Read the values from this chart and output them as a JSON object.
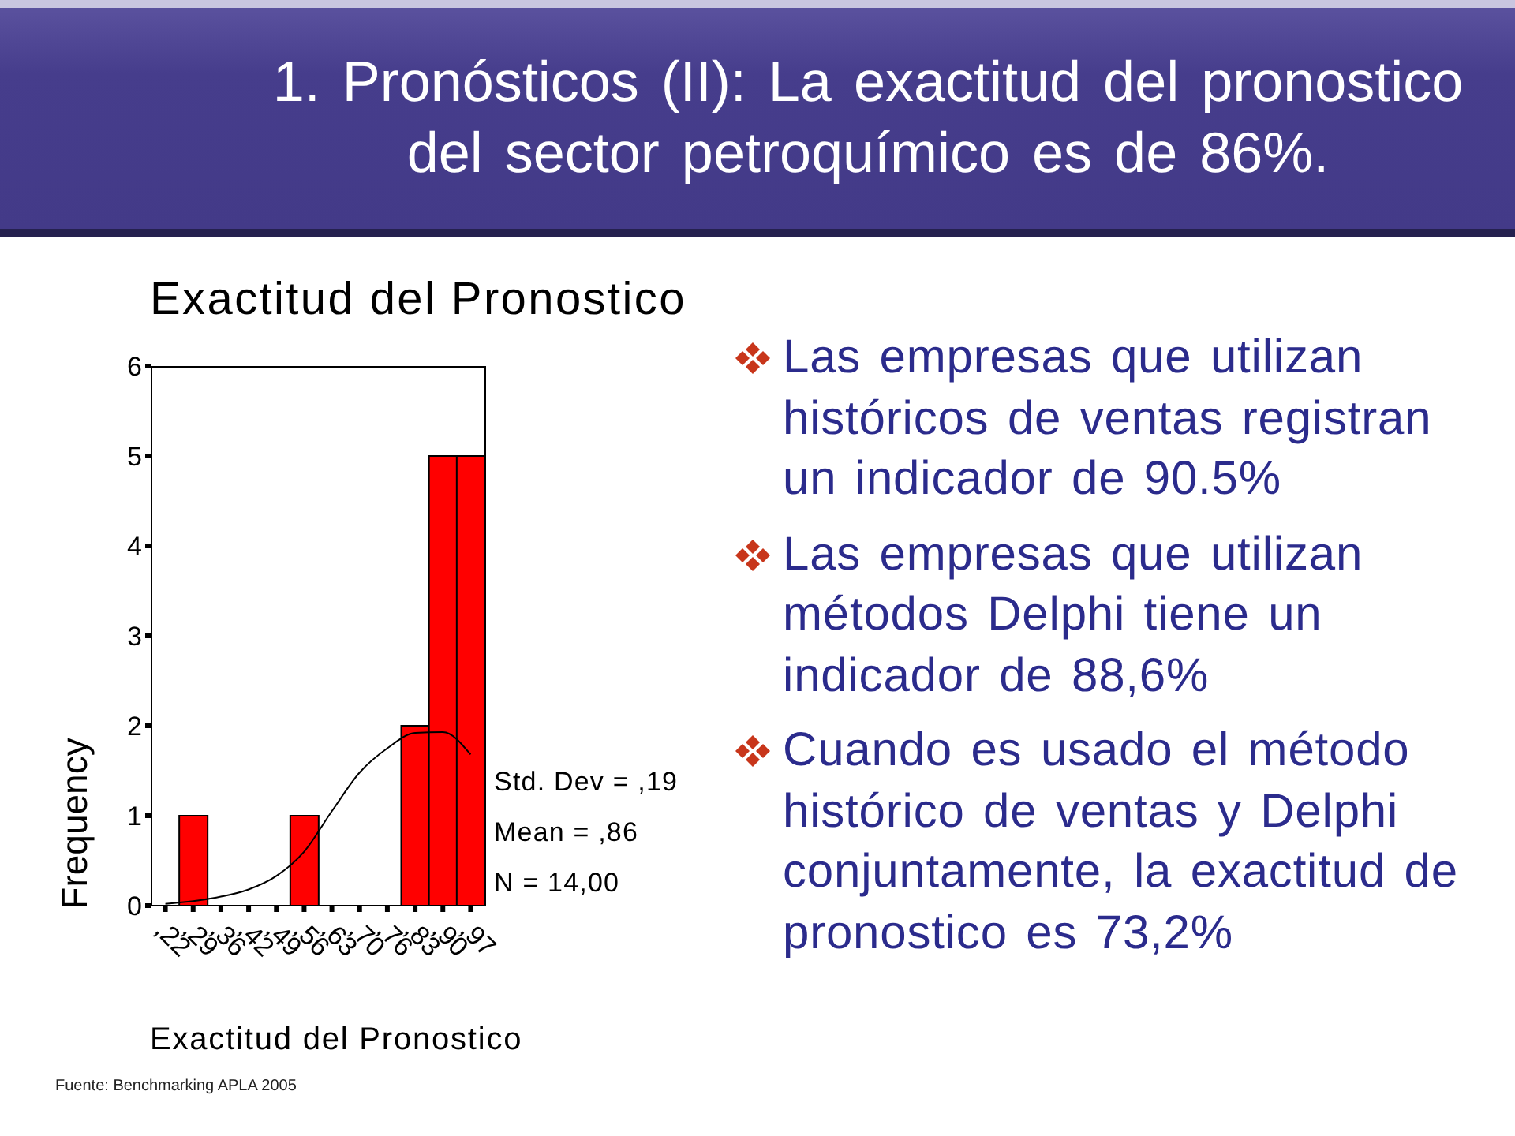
{
  "chart_data": {
    "type": "bar",
    "title": "1. Pronósticos (II): La exactitud del pronostico del sector petroquímico es de 86%.",
    "subtitle": "Exactitud del Pronostico",
    "xlabel": "Exactitud del Pronostico",
    "ylabel": "Frequency",
    "categories": [
      ",22",
      ",29",
      ",36",
      ",42",
      ",49",
      ",56",
      ",63",
      ",70",
      ",76",
      ",83",
      ",90",
      ",97"
    ],
    "series": [
      {
        "color": "#ff0000",
        "values": [
          0,
          1,
          0,
          0,
          0,
          1,
          0,
          0,
          0,
          2,
          5,
          5
        ]
      },
      {
        "type": "line",
        "color": "#000000",
        "values": [
          0.02,
          0.05,
          0.1,
          0.18,
          0.33,
          0.6,
          1.05,
          1.48,
          1.75,
          1.92,
          1.93,
          1.68
        ]
      }
    ],
    "ylim": [
      0,
      6
    ],
    "yticks": [
      0,
      1,
      2,
      3,
      4,
      5,
      6
    ],
    "marker": "none",
    "annotations": [
      "Std. Dev = ,19",
      "Mean = ,86",
      "N = 14,00",
      "Las empresas que utilizan históricos de ventas registran un indicador de 90.5%",
      "Las empresas que utilizan métodos Delphi tiene un indicador de 88,6%",
      "Cuando es usado el método histórico de ventas y Delphi conjuntamente, la exactitud de pronostico es 73,2%",
      "Fuente: Benchmarking APLA 2005"
    ]
  }
}
